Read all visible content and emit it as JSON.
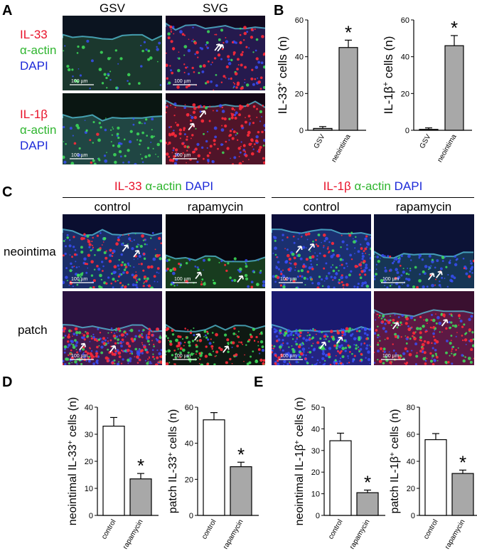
{
  "panels": {
    "A": "A",
    "B": "B",
    "C": "C",
    "D": "D",
    "E": "E"
  },
  "panelA": {
    "col_headers": [
      "GSV",
      "SVG"
    ],
    "row1_labels": {
      "stain1": "IL-33",
      "stain2": "α-actin",
      "stain3": "DAPI"
    },
    "row2_labels": {
      "stain1": "IL-1β",
      "stain2": "α-actin",
      "stain3": "DAPI"
    },
    "scale_bar": "100 µm"
  },
  "panelC": {
    "group1_title": {
      "p1": "IL-33",
      "p2": "α-actin",
      "p3": "DAPI"
    },
    "group2_title": {
      "p1": "IL-1β",
      "p2": "α-actin",
      "p3": "DAPI"
    },
    "sub_headers": [
      "control",
      "rapamycin",
      "control",
      "rapamycin"
    ],
    "row_labels": [
      "neointima",
      "patch"
    ],
    "scale_bar": "100 µm"
  },
  "colors": {
    "bar_white": "#ffffff",
    "bar_gray": "#a8a8a8",
    "red": "#e8122a",
    "green": "#2fb52f",
    "blue": "#1d2ad8"
  },
  "chart_data": [
    {
      "panel": "B",
      "type": "bar",
      "ylabel_pre": "IL-33",
      "ylabel_sup": "+",
      "ylabel_post": " cells (n)",
      "categories": [
        "GSV",
        "neointima"
      ],
      "values": [
        1,
        45
      ],
      "errors": [
        1,
        4
      ],
      "fills": [
        "gray",
        "gray"
      ],
      "ylim": [
        0,
        60
      ],
      "yticks": [
        0,
        20,
        40,
        60
      ],
      "annotations": [
        "",
        "*"
      ]
    },
    {
      "panel": "B",
      "type": "bar",
      "ylabel_pre": "IL-1β",
      "ylabel_sup": "+",
      "ylabel_post": " cells (n)",
      "categories": [
        "GSV",
        "neointima"
      ],
      "values": [
        0.5,
        46
      ],
      "errors": [
        0.8,
        5.5
      ],
      "fills": [
        "gray",
        "gray"
      ],
      "ylim": [
        0,
        60
      ],
      "yticks": [
        0,
        20,
        40,
        60
      ],
      "annotations": [
        "",
        "*"
      ]
    },
    {
      "panel": "D",
      "type": "bar",
      "ylabel_pre": "neointimal IL-33",
      "ylabel_sup": "+",
      "ylabel_post": " cells (n)",
      "categories": [
        "control",
        "rapamycin"
      ],
      "values": [
        33,
        13.5
      ],
      "errors": [
        3.2,
        2
      ],
      "fills": [
        "white",
        "gray"
      ],
      "ylim": [
        0,
        40
      ],
      "yticks": [
        0,
        10,
        20,
        30,
        40
      ],
      "annotations": [
        "",
        "*"
      ]
    },
    {
      "panel": "D",
      "type": "bar",
      "ylabel_pre": "patch IL-33",
      "ylabel_sup": "+",
      "ylabel_post": " cells (n)",
      "categories": [
        "control",
        "rapamycin"
      ],
      "values": [
        53,
        27
      ],
      "errors": [
        4,
        2.5
      ],
      "fills": [
        "white",
        "gray"
      ],
      "ylim": [
        0,
        60
      ],
      "yticks": [
        0,
        20,
        40,
        60
      ],
      "annotations": [
        "",
        "*"
      ]
    },
    {
      "panel": "E",
      "type": "bar",
      "ylabel_pre": "neointimal IL-1β",
      "ylabel_sup": "+",
      "ylabel_post": " cells (n)",
      "categories": [
        "control",
        "rapamycin"
      ],
      "values": [
        34.5,
        10.5
      ],
      "errors": [
        3.5,
        1.2
      ],
      "fills": [
        "white",
        "gray"
      ],
      "ylim": [
        0,
        50
      ],
      "yticks": [
        0,
        10,
        20,
        30,
        40,
        50
      ],
      "annotations": [
        "",
        "*"
      ]
    },
    {
      "panel": "E",
      "type": "bar",
      "ylabel_pre": "patch IL-1β",
      "ylabel_sup": "+",
      "ylabel_post": " cells (n)",
      "categories": [
        "control",
        "rapamycin"
      ],
      "values": [
        56,
        31
      ],
      "errors": [
        4.5,
        2.5
      ],
      "fills": [
        "white",
        "gray"
      ],
      "ylim": [
        0,
        80
      ],
      "yticks": [
        0,
        20,
        40,
        60,
        80
      ],
      "annotations": [
        "",
        "*"
      ]
    }
  ]
}
